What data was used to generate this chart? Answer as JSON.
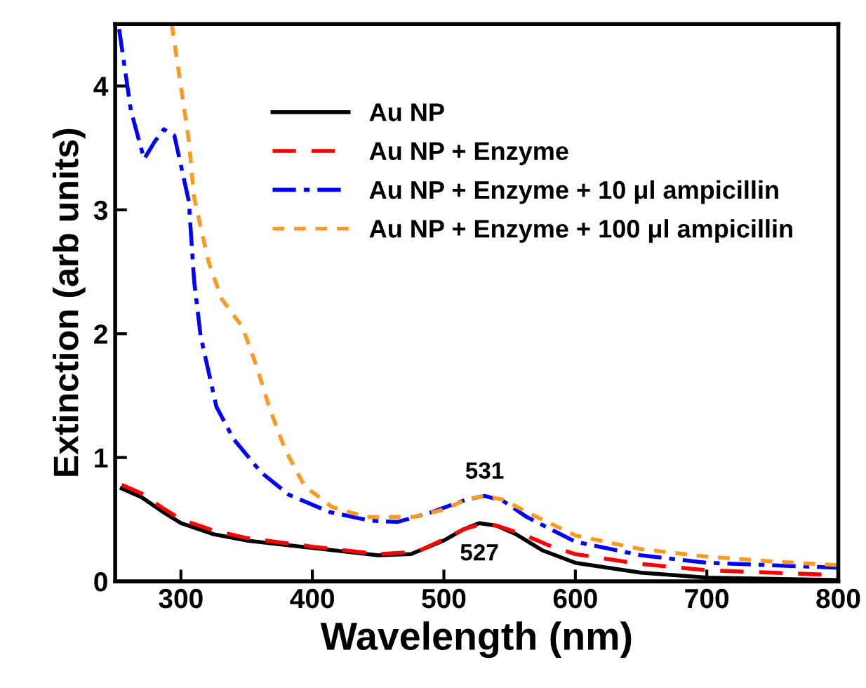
{
  "chart_data": {
    "type": "line",
    "xlabel": "Wavelength (nm)",
    "ylabel": "Extinction (arb units)",
    "xlim": [
      250,
      800
    ],
    "ylim": [
      0,
      4.5
    ],
    "xticks": [
      300,
      400,
      500,
      600,
      700,
      800
    ],
    "yticks": [
      0,
      1,
      2,
      3,
      4
    ],
    "grid": false,
    "legend": "top right",
    "marker": "none",
    "annotations": [
      {
        "text": "531",
        "x": 531,
        "y": 0.69
      },
      {
        "text": "527",
        "x": 527,
        "y": 0.47
      }
    ],
    "series": [
      {
        "name": "Au NP",
        "color": "#000000",
        "line_style": "solid",
        "x": [
          255,
          270,
          285,
          300,
          325,
          350,
          400,
          450,
          475,
          500,
          515,
          527,
          540,
          555,
          575,
          600,
          650,
          700,
          750,
          800
        ],
        "values": [
          0.75,
          0.68,
          0.57,
          0.47,
          0.38,
          0.33,
          0.27,
          0.21,
          0.22,
          0.33,
          0.42,
          0.47,
          0.45,
          0.38,
          0.25,
          0.15,
          0.07,
          0.03,
          0.02,
          0.01
        ]
      },
      {
        "name": "Au NP + Enzyme",
        "color": "#ff0000",
        "line_style": "dashed",
        "x": [
          255,
          270,
          285,
          300,
          325,
          350,
          400,
          450,
          480,
          500,
          515,
          527,
          540,
          560,
          580,
          600,
          650,
          700,
          750,
          800
        ],
        "values": [
          0.78,
          0.71,
          0.6,
          0.5,
          0.41,
          0.35,
          0.28,
          0.22,
          0.24,
          0.34,
          0.42,
          0.46,
          0.45,
          0.38,
          0.29,
          0.22,
          0.14,
          0.09,
          0.07,
          0.05
        ]
      },
      {
        "name": "Au NP + Enzyme + 10 μl ampicillin",
        "color": "#0000ff",
        "line_style": "dashdot",
        "x": [
          253,
          262,
          272,
          280,
          287,
          295,
          306,
          310,
          315,
          327,
          340,
          361,
          382,
          413,
          444,
          465,
          491,
          517,
          531,
          545,
          563,
          600,
          650,
          700,
          750,
          800
        ],
        "values": [
          4.46,
          3.8,
          3.41,
          3.55,
          3.65,
          3.6,
          3.07,
          2.43,
          1.98,
          1.41,
          1.15,
          0.88,
          0.7,
          0.56,
          0.49,
          0.48,
          0.56,
          0.66,
          0.69,
          0.65,
          0.52,
          0.32,
          0.21,
          0.15,
          0.13,
          0.11
        ]
      },
      {
        "name": "Au NP + Enzyme + 100 μl ampicillin",
        "color": "#ff9922",
        "line_style": "dashed",
        "x": [
          293,
          306,
          310,
          321,
          331,
          347,
          358,
          368,
          379,
          394,
          415,
          441,
          477,
          500,
          517,
          531,
          545,
          565,
          600,
          650,
          700,
          750,
          800
        ],
        "values": [
          4.5,
          3.56,
          3.1,
          2.58,
          2.28,
          2.05,
          1.72,
          1.38,
          1.07,
          0.77,
          0.6,
          0.52,
          0.52,
          0.58,
          0.66,
          0.69,
          0.66,
          0.55,
          0.37,
          0.26,
          0.2,
          0.16,
          0.13
        ]
      }
    ]
  }
}
